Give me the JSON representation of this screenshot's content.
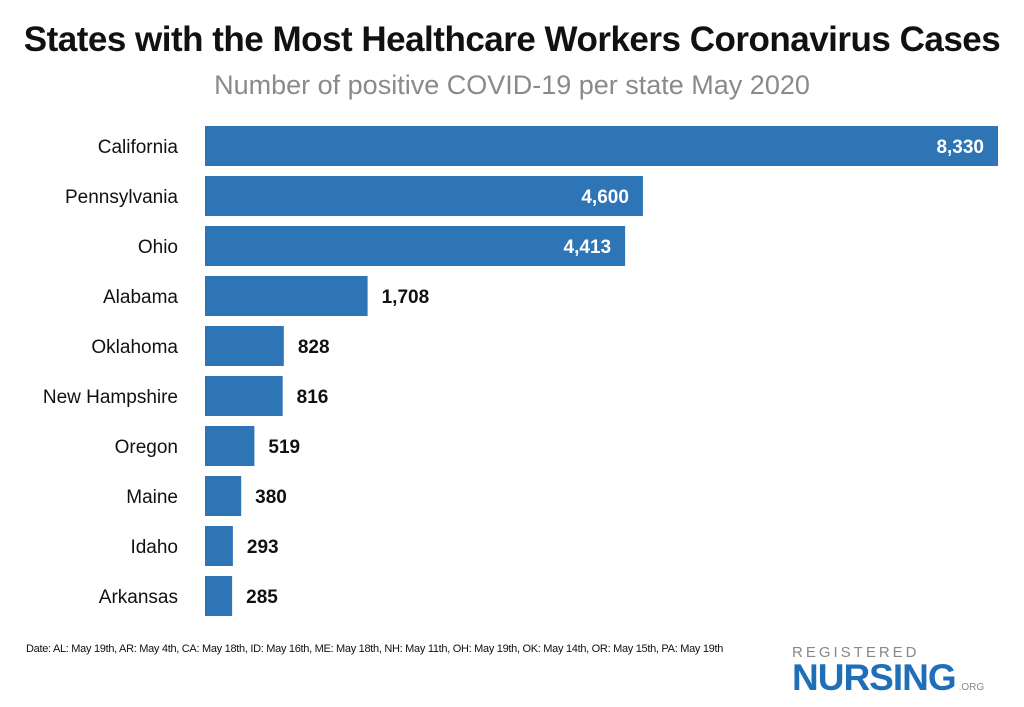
{
  "chart_data": {
    "type": "bar",
    "orientation": "horizontal",
    "title": "States with the Most Healthcare Workers Coronavirus Cases",
    "subtitle": "Number of positive COVID-19 per state May 2020",
    "categories": [
      "California",
      "Pennsylvania",
      "Ohio",
      "Alabama",
      "Oklahoma",
      "New Hampshire",
      "Oregon",
      "Maine",
      "Idaho",
      "Arkansas"
    ],
    "values": [
      8330,
      4600,
      4413,
      1708,
      828,
      816,
      519,
      380,
      293,
      285
    ],
    "value_labels": [
      "8,330",
      "4,600",
      "4,413",
      "1,708",
      "828",
      "816",
      "519",
      "380",
      "293",
      "285"
    ],
    "xlim": [
      0,
      8330
    ],
    "grid": false,
    "bar_color": "#2e75b6"
  },
  "footnote": "Date: AL: May 19th, AR: May 4th, CA: May 18th, ID: May 16th, ME: May 18th, NH: May 11th, OH: May 19th, OK: May 14th, OR: May 15th, PA: May 19th",
  "logo": {
    "line1": "REGISTERED",
    "line2": "NURSING",
    "suffix": ".ORG"
  }
}
